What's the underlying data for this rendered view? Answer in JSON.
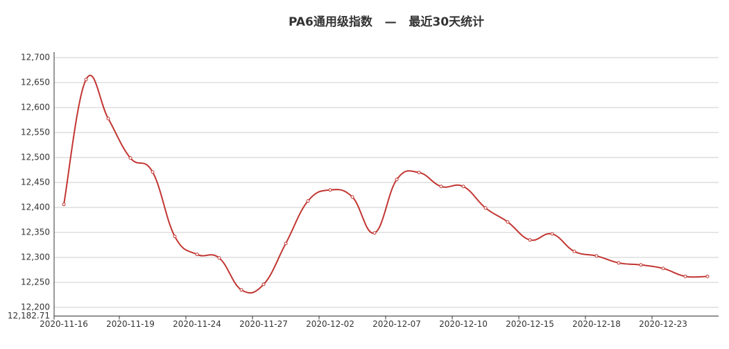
{
  "chart_data": {
    "type": "line",
    "title": "PA6通用级指数   —   最近30天统计",
    "categories": [
      "2020-11-16",
      null,
      null,
      "2020-11-19",
      null,
      null,
      "2020-11-24",
      null,
      null,
      "2020-11-27",
      null,
      null,
      "2020-12-02",
      null,
      null,
      "2020-12-07",
      null,
      null,
      "2020-12-10",
      null,
      null,
      "2020-12-15",
      null,
      null,
      "2020-12-18",
      null,
      null,
      "2020-12-23",
      null,
      null
    ],
    "values": [
      12406,
      12656,
      12578,
      12499,
      12471,
      12342,
      12306,
      12299,
      12235,
      12246,
      12328,
      12413,
      12435,
      12421,
      12349,
      12456,
      12470,
      12442,
      12442,
      12399,
      12371,
      12335,
      12347,
      12312,
      12303,
      12289,
      12285,
      12278,
      12262,
      12262
    ],
    "color": "#c23531",
    "ylim": [
      12182.71,
      12700
    ],
    "yticks": [
      {
        "value": 12182.71,
        "label": "12,182.71"
      },
      {
        "value": 12200,
        "label": "12,200"
      },
      {
        "value": 12250,
        "label": "12,250"
      },
      {
        "value": 12300,
        "label": "12,300"
      },
      {
        "value": 12350,
        "label": "12,350"
      },
      {
        "value": 12400,
        "label": "12,400"
      },
      {
        "value": 12450,
        "label": "12,450"
      },
      {
        "value": 12500,
        "label": "12,500"
      },
      {
        "value": 12550,
        "label": "12,550"
      },
      {
        "value": 12600,
        "label": "12,600"
      },
      {
        "value": 12650,
        "label": "12,650"
      },
      {
        "value": 12700,
        "label": "12,700"
      }
    ],
    "grid": true
  }
}
